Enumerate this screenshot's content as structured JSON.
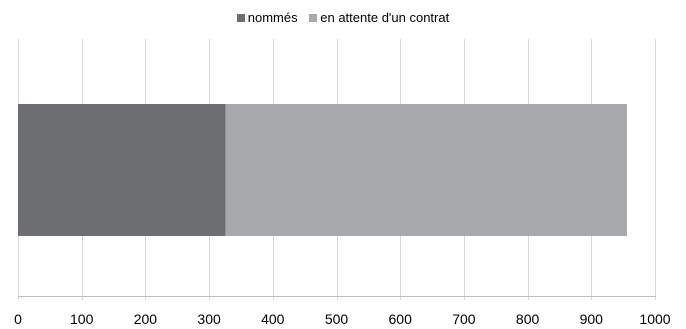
{
  "chart_data": {
    "type": "bar",
    "orientation": "horizontal",
    "stacked": true,
    "categories": [
      ""
    ],
    "series": [
      {
        "name": "nommés",
        "values": [
          326
        ],
        "color": "#6d6e71"
      },
      {
        "name": "en attente d'un contrat",
        "values": [
          630
        ],
        "color": "#a7a9ac"
      }
    ],
    "xlim": [
      0,
      1000
    ],
    "xticks": [
      0,
      100,
      200,
      300,
      400,
      500,
      600,
      700,
      800,
      900,
      1000
    ],
    "grid": "vertical",
    "legend_position": "top",
    "title": "",
    "xlabel": "",
    "ylabel": ""
  }
}
